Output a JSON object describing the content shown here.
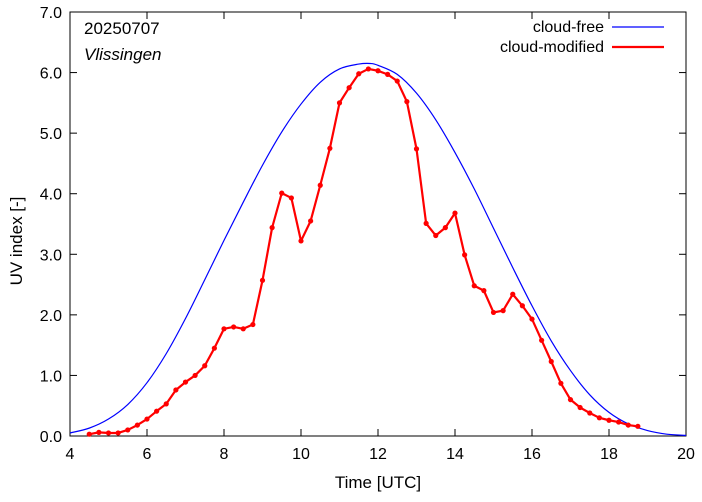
{
  "chart_data": {
    "type": "line",
    "xlabel": "Time  [UTC]",
    "ylabel": "UV index  [-]",
    "xlim": [
      4,
      20
    ],
    "ylim": [
      0.0,
      7.0
    ],
    "x_ticks": [
      4,
      6,
      8,
      10,
      12,
      14,
      16,
      18,
      20
    ],
    "x_tick_labels": [
      "4",
      "6",
      "8",
      "10",
      "12",
      "14",
      "16",
      "18",
      "20"
    ],
    "y_ticks": [
      0,
      1,
      2,
      3,
      4,
      5,
      6,
      7
    ],
    "y_tick_labels": [
      "0.0",
      "1.0",
      "2.0",
      "3.0",
      "4.0",
      "5.0",
      "6.0",
      "7.0"
    ],
    "grid": false,
    "legend_position": "top-right",
    "annotations": {
      "date": "20250707",
      "location": "Vlissingen"
    },
    "series": [
      {
        "name": "cloud-free",
        "color": "#0000ff",
        "style": "line",
        "x": [
          4.0,
          4.5,
          5.0,
          5.5,
          6.0,
          6.5,
          7.0,
          7.5,
          8.0,
          8.5,
          9.0,
          9.5,
          10.0,
          10.5,
          11.0,
          11.5,
          11.8,
          12.0,
          12.5,
          13.0,
          13.5,
          14.0,
          14.5,
          15.0,
          15.5,
          16.0,
          16.5,
          17.0,
          17.5,
          18.0,
          18.5,
          19.0,
          19.5,
          20.0
        ],
        "y": [
          0.05,
          0.13,
          0.28,
          0.52,
          0.88,
          1.36,
          1.94,
          2.58,
          3.23,
          3.86,
          4.47,
          5.02,
          5.48,
          5.84,
          6.06,
          6.14,
          6.15,
          6.12,
          5.97,
          5.66,
          5.22,
          4.68,
          4.08,
          3.43,
          2.78,
          2.15,
          1.57,
          1.08,
          0.68,
          0.39,
          0.2,
          0.09,
          0.03,
          0.01
        ]
      },
      {
        "name": "cloud-modified",
        "color": "#ff0000",
        "style": "line-points",
        "x": [
          4.5,
          4.75,
          5.0,
          5.25,
          5.5,
          5.75,
          6.0,
          6.25,
          6.5,
          6.75,
          7.0,
          7.25,
          7.5,
          7.75,
          8.0,
          8.25,
          8.5,
          8.75,
          9.0,
          9.25,
          9.5,
          9.75,
          10.0,
          10.25,
          10.5,
          10.75,
          11.0,
          11.25,
          11.5,
          11.75,
          12.0,
          12.25,
          12.5,
          12.75,
          13.0,
          13.25,
          13.5,
          13.75,
          14.0,
          14.25,
          14.5,
          14.75,
          15.0,
          15.25,
          15.5,
          15.75,
          16.0,
          16.25,
          16.5,
          16.75,
          17.0,
          17.25,
          17.5,
          17.75,
          18.0,
          18.25,
          18.5,
          18.75
        ],
        "y": [
          0.03,
          0.06,
          0.05,
          0.05,
          0.1,
          0.18,
          0.28,
          0.41,
          0.53,
          0.76,
          0.89,
          1.0,
          1.16,
          1.45,
          1.77,
          1.8,
          1.77,
          1.84,
          2.57,
          3.44,
          4.01,
          3.93,
          3.22,
          3.55,
          4.14,
          4.75,
          5.5,
          5.75,
          5.98,
          6.06,
          6.03,
          5.97,
          5.86,
          5.52,
          4.74,
          3.51,
          3.31,
          3.44,
          3.68,
          2.99,
          2.48,
          2.4,
          2.04,
          2.07,
          2.34,
          2.15,
          1.93,
          1.58,
          1.23,
          0.87,
          0.6,
          0.47,
          0.38,
          0.3,
          0.26,
          0.23,
          0.18,
          0.16
        ]
      }
    ]
  }
}
